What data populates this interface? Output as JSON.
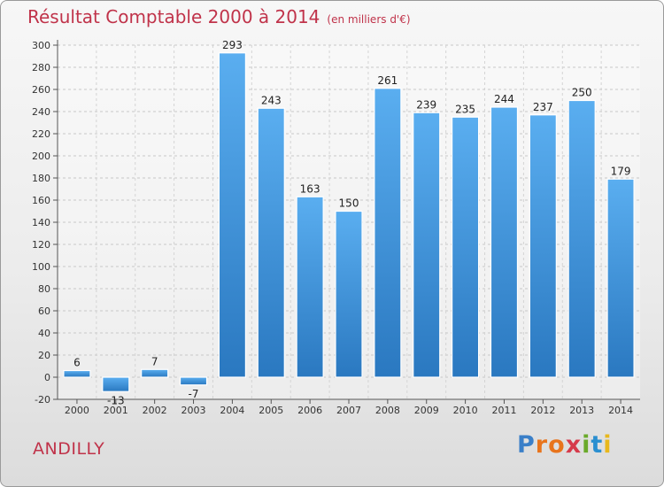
{
  "header": {
    "title": "Résultat Comptable 2000 à 2014",
    "subtitle": "(en milliers d'€)"
  },
  "footer": {
    "commune": "ANDILLY",
    "logo_text": "Proxiti",
    "logo_colors": [
      "#3a7fc8",
      "#e8741c",
      "#e8741c",
      "#d63a4a",
      "#6aaa2a",
      "#2a8fd0",
      "#e8b81c"
    ]
  },
  "chart_data": {
    "type": "bar",
    "title": "Résultat Comptable 2000 à 2014",
    "subtitle": "(en milliers d'€)",
    "xlabel": "",
    "ylabel": "",
    "categories": [
      "2000",
      "2001",
      "2002",
      "2003",
      "2004",
      "2005",
      "2006",
      "2007",
      "2008",
      "2009",
      "2010",
      "2011",
      "2012",
      "2013",
      "2014"
    ],
    "values": [
      6,
      -13,
      7,
      -7,
      293,
      243,
      163,
      150,
      261,
      239,
      235,
      244,
      237,
      250,
      179
    ],
    "data_labels": [
      "6",
      "-13",
      "7",
      "-7",
      "293",
      "243",
      "163",
      "150",
      "261",
      "239",
      "235",
      "244",
      "237",
      "250",
      "179"
    ],
    "ylim": [
      -20,
      300
    ],
    "yticks": [
      "-20",
      "0",
      "20",
      "40",
      "60",
      "80",
      "100",
      "120",
      "140",
      "160",
      "180",
      "200",
      "220",
      "240",
      "260",
      "280",
      "300"
    ],
    "grid": true,
    "bar_color": "#3d8fd8"
  }
}
